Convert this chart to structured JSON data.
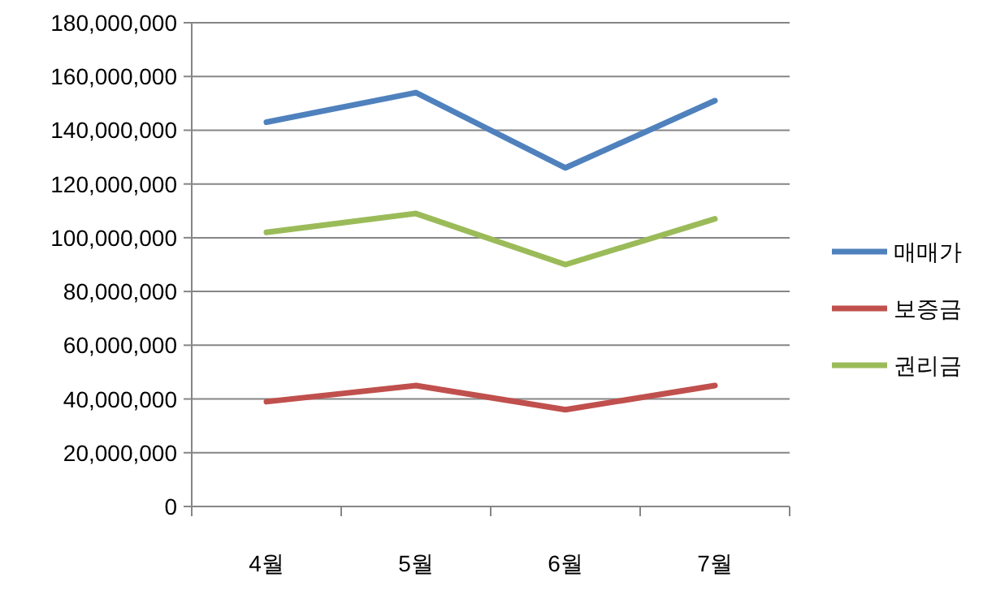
{
  "chart_data": {
    "type": "line",
    "categories": [
      "4월",
      "5월",
      "6월",
      "7월"
    ],
    "series": [
      {
        "name": "매매가",
        "color": "#4f81bd",
        "values": [
          143000000,
          154000000,
          126000000,
          151000000
        ]
      },
      {
        "name": "보증금",
        "color": "#c0504d",
        "values": [
          39000000,
          45000000,
          36000000,
          45000000
        ]
      },
      {
        "name": "권리금",
        "color": "#9bbb59",
        "values": [
          102000000,
          109000000,
          90000000,
          107000000
        ]
      }
    ],
    "ylim": [
      0,
      180000000
    ],
    "yticks": [
      {
        "value": 0,
        "label": "0"
      },
      {
        "value": 20000000,
        "label": "20,000,000"
      },
      {
        "value": 40000000,
        "label": "40,000,000"
      },
      {
        "value": 60000000,
        "label": "60,000,000"
      },
      {
        "value": 80000000,
        "label": "80,000,000"
      },
      {
        "value": 100000000,
        "label": "100,000,000"
      },
      {
        "value": 120000000,
        "label": "120,000,000"
      },
      {
        "value": 140000000,
        "label": "140,000,000"
      },
      {
        "value": 160000000,
        "label": "160,000,000"
      },
      {
        "value": 180000000,
        "label": "180,000,000"
      }
    ],
    "grid": "y",
    "legend": "right",
    "marker": "none",
    "line_style": "solid"
  }
}
